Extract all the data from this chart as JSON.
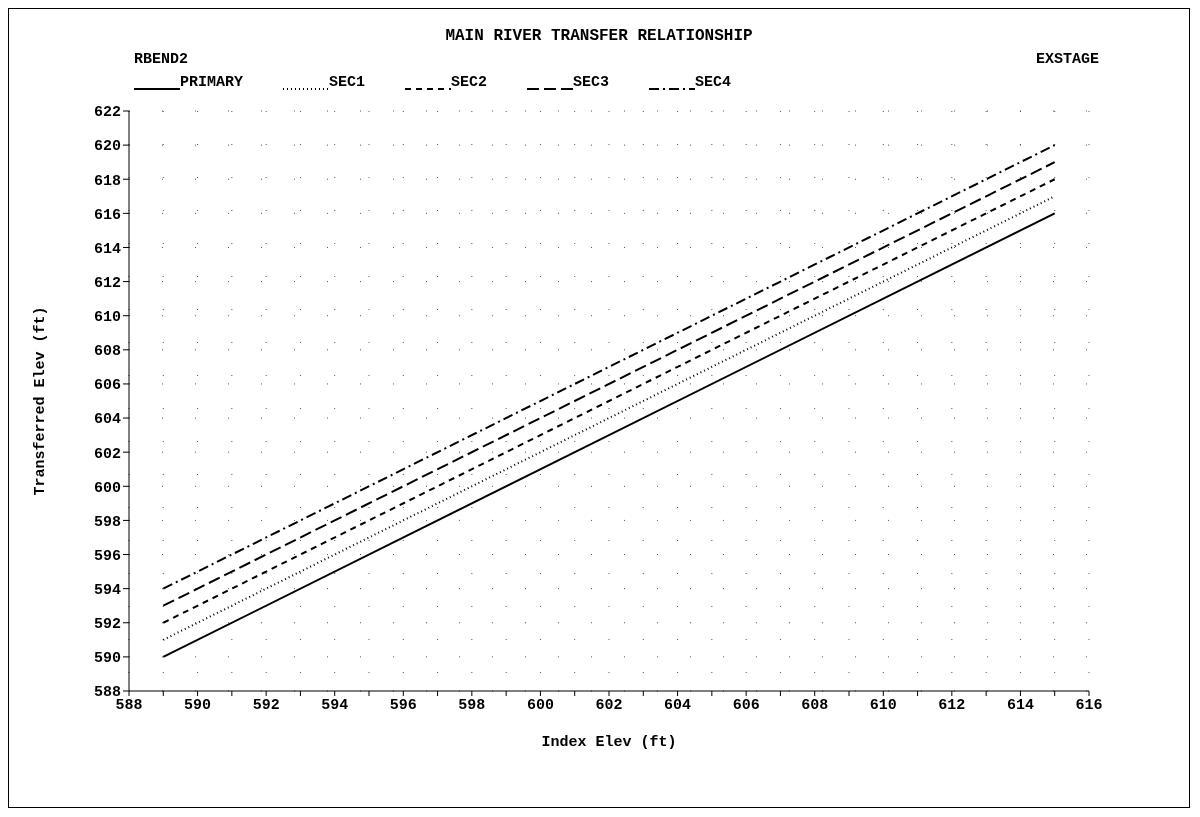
{
  "chart_data": {
    "type": "line",
    "title": "MAIN RIVER TRANSFER RELATIONSHIP",
    "annotations": [
      "RBEND2",
      "EXSTAGE"
    ],
    "xlabel": "Index Elev (ft)",
    "ylabel": "Transferred Elev (ft)",
    "xlim": [
      588,
      616
    ],
    "xticks": [
      588,
      {
        "value": 589,
        "label": null
      },
      590,
      {
        "value": 591,
        "label": null
      },
      592,
      {
        "value": 593,
        "label": null
      },
      594,
      {
        "value": 595,
        "label": null
      },
      596,
      {
        "value": 597,
        "label": null
      },
      598,
      {
        "value": 599,
        "label": null
      },
      600,
      {
        "value": 601,
        "label": null
      },
      602,
      {
        "value": 603,
        "label": null
      },
      604,
      {
        "value": 605,
        "label": null
      },
      606,
      {
        "value": 607,
        "label": null
      },
      608,
      {
        "value": 609,
        "label": null
      },
      610,
      {
        "value": 611,
        "label": null
      },
      612,
      {
        "value": 613,
        "label": null
      },
      614,
      {
        "value": 615,
        "label": null
      },
      616
    ],
    "ylim": [
      588,
      622
    ],
    "yticks": [
      588,
      590,
      592,
      594,
      596,
      598,
      600,
      602,
      604,
      606,
      608,
      610,
      612,
      614,
      616,
      618,
      620,
      622
    ],
    "grid": true,
    "legend": "top left",
    "marker": "none",
    "x": [
      589,
      615
    ],
    "series": [
      {
        "name": "PRIMARY",
        "color": "#000000",
        "line_style": "solid",
        "values": [
          590,
          616
        ]
      },
      {
        "name": "SEC1",
        "color": "#000000",
        "line_style": "dotted",
        "values": [
          591,
          617
        ]
      },
      {
        "name": "SEC2",
        "color": "#000000",
        "line_style": "dashed",
        "values": [
          592,
          618
        ]
      },
      {
        "name": "SEC3",
        "color": "#000000",
        "line_style": "longdash",
        "values": [
          593,
          619
        ]
      },
      {
        "name": "SEC4",
        "color": "#000000",
        "line_style": "dashdot",
        "values": [
          594,
          620
        ]
      }
    ]
  }
}
